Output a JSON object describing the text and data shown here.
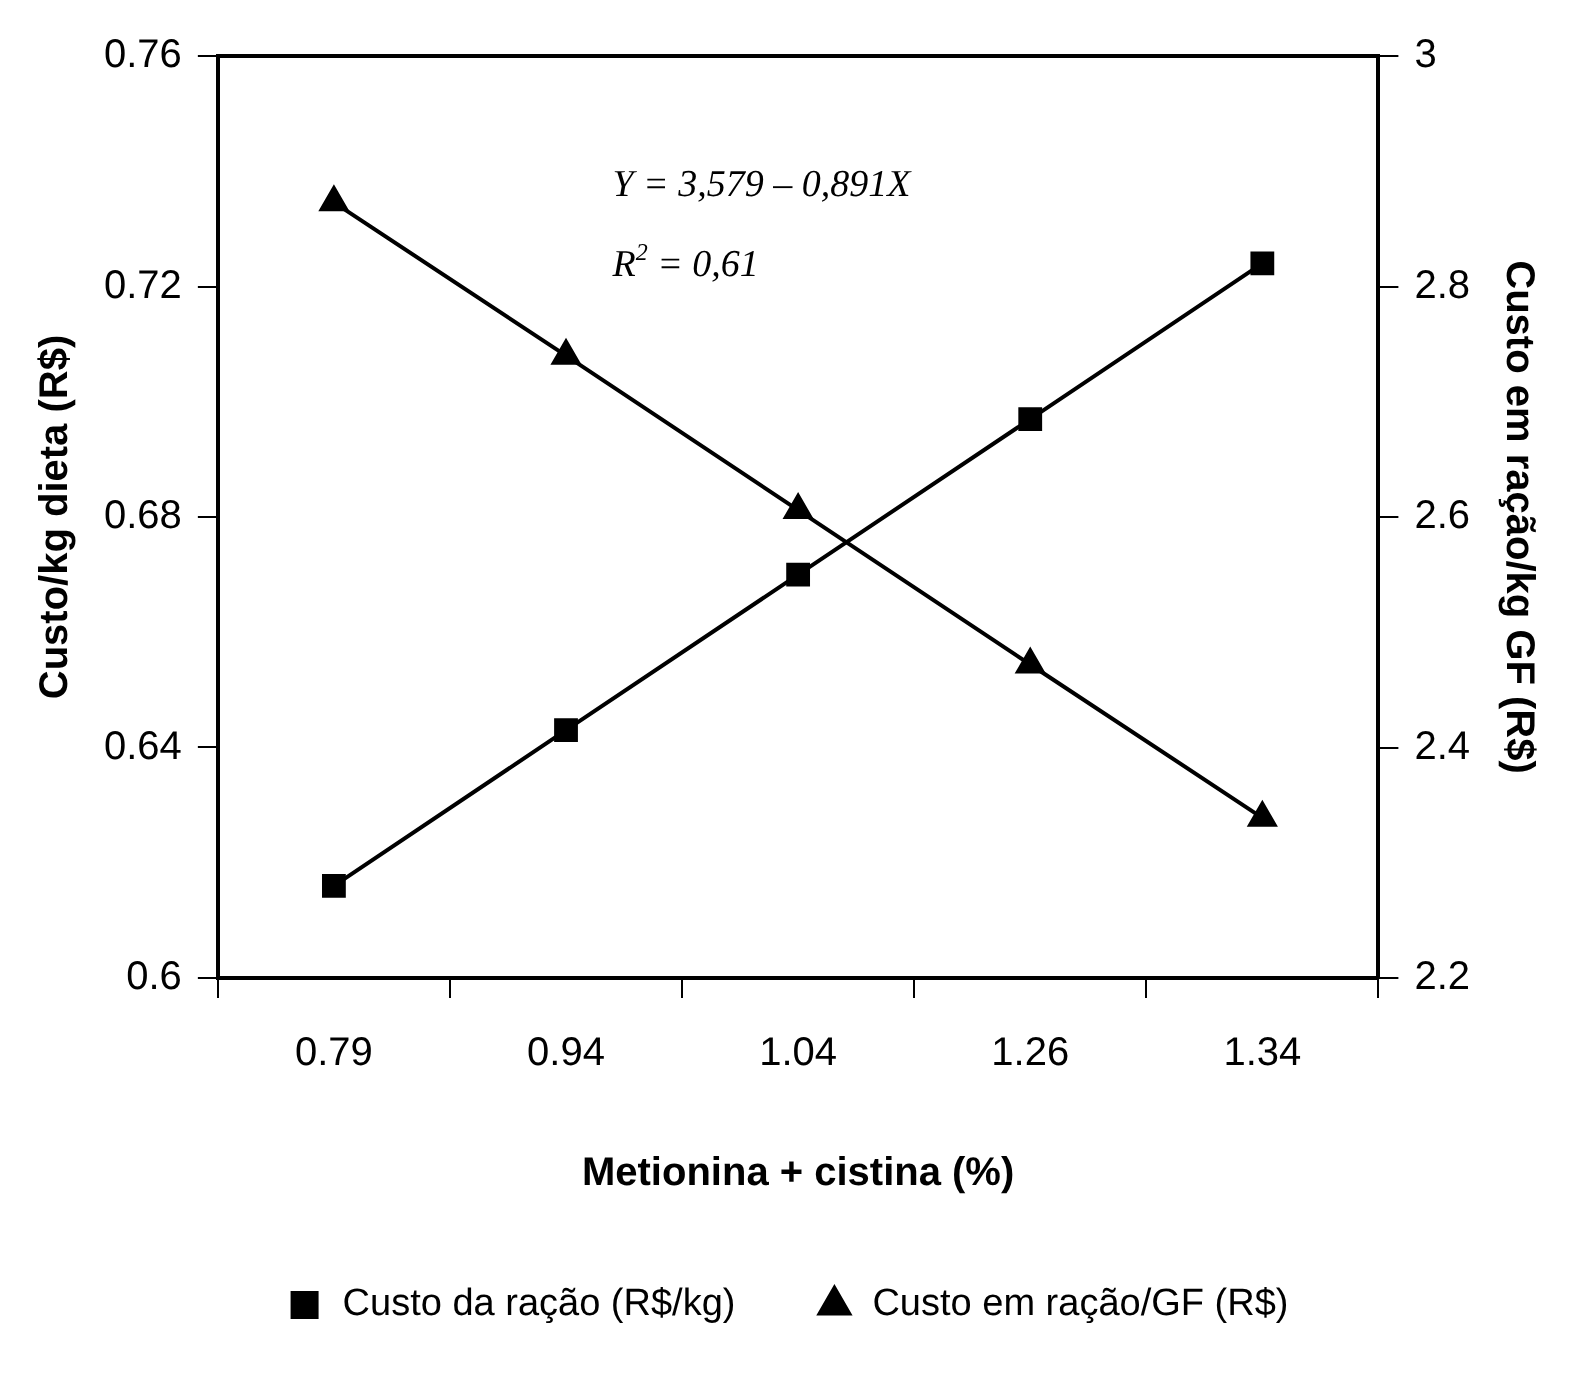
{
  "chart_data": {
    "type": "line",
    "xlabel": "Metionina + cistina (%)",
    "ylabel": "Custo/kg dieta (R$)",
    "y2label": "Custo em ração/kg GF (R$)",
    "categories": [
      "0.79",
      "0.94",
      "1.04",
      "1.26",
      "1.34"
    ],
    "series": [
      {
        "name": "Custo da ração (R$/kg)",
        "color": "#000000",
        "marker": "square",
        "values": [
          0.616,
          0.643,
          0.67,
          0.697,
          0.724
        ]
      },
      {
        "name": "Custo em ração/GF (R$)",
        "color": "#000000",
        "marker": "triangle",
        "axis": "y2",
        "values": [
          2.873,
          2.74,
          2.606,
          2.472,
          2.339
        ]
      }
    ],
    "ylim": [
      0.6,
      0.76
    ],
    "yticks": [
      0.6,
      0.64,
      0.68,
      0.72,
      0.76
    ],
    "y2lim": [
      2.2,
      3
    ],
    "y2ticks": [
      2.2,
      2.4,
      2.6,
      2.8,
      3
    ],
    "annotations": [
      "Y = 3,579 – 0,891X",
      "R$^{2}$ = 0,61"
    ],
    "grid": false,
    "legend": "bottom",
    "line_style": "solid"
  }
}
